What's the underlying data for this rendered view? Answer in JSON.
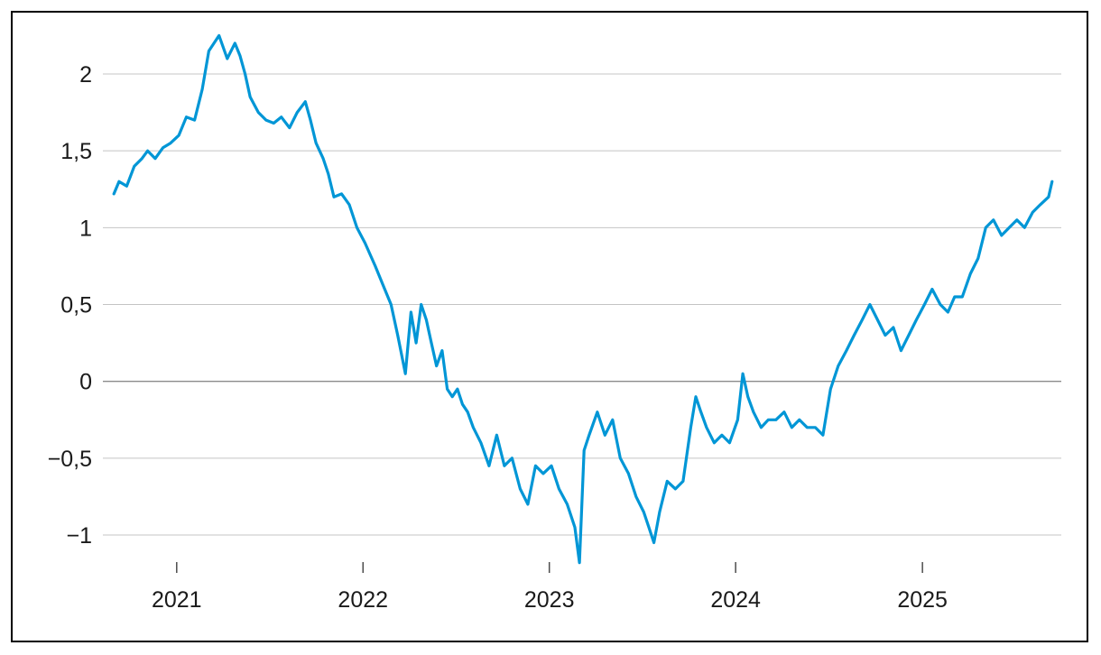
{
  "chart_data": {
    "type": "line",
    "title": "",
    "xlabel": "",
    "ylabel": "",
    "x_tick_labels": [
      "2021",
      "2022",
      "2023",
      "2024",
      "2025"
    ],
    "y_ticks": [
      2,
      1.5,
      1,
      0.5,
      0,
      -0.5,
      -1
    ],
    "y_tick_labels": [
      "2",
      "1,5",
      "1",
      "0,5",
      "0",
      "−0,5",
      "−1"
    ],
    "xlim": [
      "2020-08-20",
      "2025-09-30"
    ],
    "ylim": [
      -1.2,
      2.35
    ],
    "grid": "horizontal",
    "legend": "none",
    "line_color": "#0096d6",
    "series": [
      {
        "x": [
          "2020-08-31",
          "2020-09-10",
          "2020-09-25",
          "2020-10-10",
          "2020-10-25",
          "2020-11-05",
          "2020-11-20",
          "2020-12-05",
          "2020-12-20",
          "2021-01-05",
          "2021-01-20",
          "2021-02-05",
          "2021-02-20",
          "2021-03-05",
          "2021-03-15",
          "2021-03-25",
          "2021-04-10",
          "2021-04-25",
          "2021-05-05",
          "2021-05-15",
          "2021-05-25",
          "2021-06-10",
          "2021-06-25",
          "2021-07-10",
          "2021-07-25",
          "2021-08-10",
          "2021-08-25",
          "2021-09-10",
          "2021-09-20",
          "2021-10-01",
          "2021-10-15",
          "2021-10-25",
          "2021-11-05",
          "2021-11-20",
          "2021-12-05",
          "2021-12-20",
          "2022-01-05",
          "2022-01-25",
          "2022-02-10",
          "2022-02-25",
          "2022-03-10",
          "2022-03-25",
          "2022-04-05",
          "2022-04-15",
          "2022-04-25",
          "2022-05-05",
          "2022-05-15",
          "2022-05-25",
          "2022-06-05",
          "2022-06-15",
          "2022-06-25",
          "2022-07-05",
          "2022-07-15",
          "2022-07-25",
          "2022-08-05",
          "2022-08-20",
          "2022-09-05",
          "2022-09-20",
          "2022-10-05",
          "2022-10-20",
          "2022-11-05",
          "2022-11-20",
          "2022-12-05",
          "2022-12-20",
          "2023-01-05",
          "2023-01-20",
          "2023-02-05",
          "2023-02-20",
          "2023-03-01",
          "2023-03-10",
          "2023-03-20",
          "2023-04-05",
          "2023-04-20",
          "2023-05-05",
          "2023-05-20",
          "2023-06-05",
          "2023-06-20",
          "2023-07-05",
          "2023-07-15",
          "2023-07-25",
          "2023-08-05",
          "2023-08-20",
          "2023-09-05",
          "2023-09-20",
          "2023-10-05",
          "2023-10-15",
          "2023-10-25",
          "2023-11-05",
          "2023-11-20",
          "2023-12-05",
          "2023-12-20",
          "2024-01-05",
          "2024-01-15",
          "2024-01-25",
          "2024-02-05",
          "2024-02-20",
          "2024-03-05",
          "2024-03-20",
          "2024-04-05",
          "2024-04-20",
          "2024-05-05",
          "2024-05-20",
          "2024-06-05",
          "2024-06-20",
          "2024-07-05",
          "2024-07-20",
          "2024-08-05",
          "2024-08-20",
          "2024-09-05",
          "2024-09-20",
          "2024-10-05",
          "2024-10-20",
          "2024-11-05",
          "2024-11-20",
          "2024-12-05",
          "2024-12-20",
          "2025-01-05",
          "2025-01-20",
          "2025-02-05",
          "2025-02-20",
          "2025-03-05",
          "2025-03-20",
          "2025-04-05",
          "2025-04-20",
          "2025-05-05",
          "2025-05-20",
          "2025-06-05",
          "2025-06-20",
          "2025-07-05",
          "2025-07-20",
          "2025-08-05",
          "2025-08-20",
          "2025-09-05",
          "2025-09-12"
        ],
        "y": [
          1.22,
          1.3,
          1.27,
          1.4,
          1.45,
          1.5,
          1.45,
          1.52,
          1.55,
          1.6,
          1.72,
          1.7,
          1.9,
          2.15,
          2.2,
          2.25,
          2.1,
          2.2,
          2.12,
          2.0,
          1.85,
          1.75,
          1.7,
          1.68,
          1.72,
          1.65,
          1.75,
          1.82,
          1.7,
          1.55,
          1.45,
          1.35,
          1.2,
          1.22,
          1.15,
          1.0,
          0.9,
          0.75,
          0.62,
          0.5,
          0.3,
          0.05,
          0.45,
          0.25,
          0.5,
          0.4,
          0.25,
          0.1,
          0.2,
          -0.05,
          -0.1,
          -0.05,
          -0.15,
          -0.2,
          -0.3,
          -0.4,
          -0.55,
          -0.35,
          -0.55,
          -0.5,
          -0.7,
          -0.8,
          -0.55,
          -0.6,
          -0.55,
          -0.7,
          -0.8,
          -0.95,
          -1.18,
          -0.45,
          -0.35,
          -0.2,
          -0.35,
          -0.25,
          -0.5,
          -0.6,
          -0.75,
          -0.85,
          -0.95,
          -1.05,
          -0.85,
          -0.65,
          -0.7,
          -0.65,
          -0.3,
          -0.1,
          -0.2,
          -0.3,
          -0.4,
          -0.35,
          -0.4,
          -0.25,
          0.05,
          -0.1,
          -0.2,
          -0.3,
          -0.25,
          -0.25,
          -0.2,
          -0.3,
          -0.25,
          -0.3,
          -0.3,
          -0.35,
          -0.05,
          0.1,
          0.2,
          0.3,
          0.4,
          0.5,
          0.4,
          0.3,
          0.35,
          0.2,
          0.3,
          0.4,
          0.5,
          0.6,
          0.5,
          0.45,
          0.55,
          0.55,
          0.7,
          0.8,
          1.0,
          1.05,
          0.95,
          1.0,
          1.05,
          1.0,
          1.1,
          1.15,
          1.2,
          1.3
        ]
      }
    ]
  }
}
